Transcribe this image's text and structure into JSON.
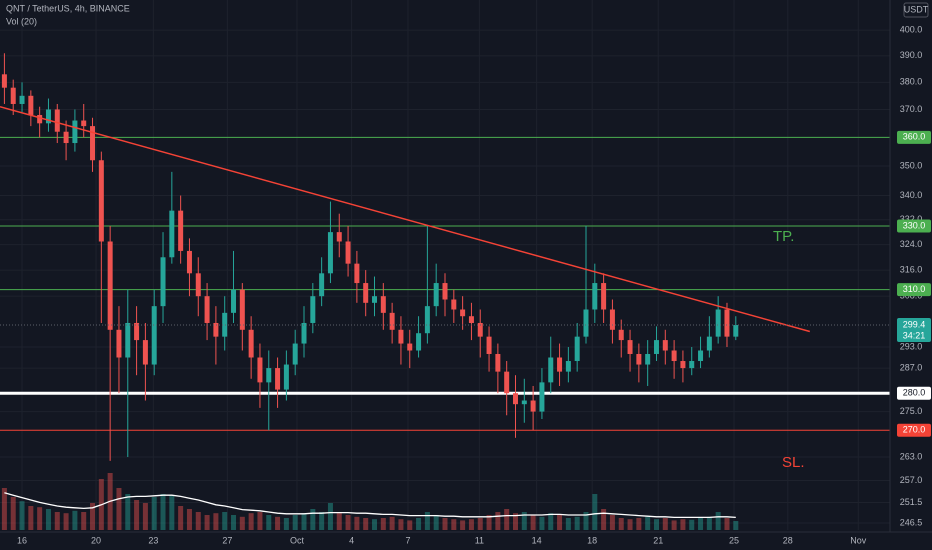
{
  "chart_data": {
    "type": "candlestick",
    "title": "QNT / TetherUS, 4h, BINANCE",
    "volume_label": "Vol (20)",
    "y_unit": "USDT",
    "log_scale": true,
    "grid": true,
    "up_color": "#26a69a",
    "down_color": "#ef5350",
    "ylim": [
      244.8,
      412
    ],
    "xlim": [
      -0.5,
      100.5
    ],
    "yticks": [
      {
        "value": 400,
        "label": "400.0"
      },
      {
        "value": 390,
        "label": "390.0"
      },
      {
        "value": 380,
        "label": "380.0"
      },
      {
        "value": 370,
        "label": "370.0"
      },
      {
        "value": 350,
        "label": "350.0"
      },
      {
        "value": 340,
        "label": "340.0"
      },
      {
        "value": 332,
        "label": "332.0"
      },
      {
        "value": 324,
        "label": "324.0"
      },
      {
        "value": 316,
        "label": "316.0"
      },
      {
        "value": 308,
        "label": "308.0"
      },
      {
        "value": 293,
        "label": "293.0"
      },
      {
        "value": 287,
        "label": "287.0"
      },
      {
        "value": 275,
        "label": "275.0"
      },
      {
        "value": 263,
        "label": "263.0"
      },
      {
        "value": 257,
        "label": "257.0"
      },
      251.5,
      246.5
    ],
    "xticks": [
      {
        "value": 2.0,
        "label": "16"
      },
      {
        "value": 10.4,
        "label": "20"
      },
      {
        "value": 16.9,
        "label": "23"
      },
      {
        "value": 25.3,
        "label": "27"
      },
      {
        "value": 33.2,
        "label": "Oct"
      },
      {
        "value": 39.4,
        "label": "4"
      },
      {
        "value": 45.8,
        "label": "7"
      },
      {
        "value": 53.9,
        "label": "11"
      },
      {
        "value": 60.4,
        "label": "14"
      },
      {
        "value": 66.7,
        "label": "18"
      },
      {
        "value": 74.2,
        "label": "21"
      },
      {
        "value": 82.8,
        "label": "25"
      },
      {
        "value": 88.9,
        "label": "28"
      },
      {
        "value": 96.9,
        "label": "Nov"
      }
    ],
    "open": [
      383,
      378,
      372,
      375,
      368,
      365,
      370,
      362,
      358,
      366,
      364,
      352,
      325,
      298,
      290,
      300,
      295,
      288,
      305,
      320,
      335,
      322,
      315,
      308,
      300,
      296,
      303,
      310,
      298,
      290,
      283,
      287,
      281,
      288,
      294,
      300,
      308,
      315,
      328,
      325,
      318,
      312,
      306,
      308,
      303,
      298,
      294,
      292,
      297,
      305,
      312,
      307,
      304,
      302,
      300,
      296,
      291,
      286,
      280,
      277,
      278,
      275,
      283,
      290,
      286,
      289,
      296,
      304,
      312,
      304,
      298,
      295,
      291,
      288,
      291,
      295,
      292,
      289,
      287,
      289,
      292,
      296,
      304,
      296
    ],
    "high": [
      391,
      381,
      380,
      377,
      371,
      374,
      372,
      366,
      370,
      372,
      367,
      355,
      330,
      305,
      310,
      305,
      300,
      310,
      328,
      348,
      340,
      326,
      320,
      312,
      305,
      308,
      322,
      312,
      302,
      294,
      292,
      290,
      292,
      298,
      305,
      312,
      320,
      338,
      334,
      330,
      322,
      316,
      314,
      312,
      306,
      302,
      298,
      302,
      330,
      318,
      315,
      310,
      308,
      306,
      304,
      299,
      294,
      289,
      285,
      284,
      282,
      287,
      296,
      294,
      293,
      300,
      330,
      318,
      315,
      307,
      301,
      298,
      294,
      295,
      299,
      298,
      295,
      292,
      293,
      296,
      302,
      308,
      306,
      302
    ],
    "low": [
      372,
      368,
      369,
      364,
      360,
      362,
      358,
      352,
      355,
      360,
      348,
      300,
      262,
      280,
      263,
      285,
      278,
      285,
      300,
      318,
      318,
      308,
      302,
      295,
      288,
      292,
      300,
      292,
      284,
      276,
      270,
      276,
      278,
      285,
      290,
      297,
      305,
      312,
      320,
      314,
      306,
      302,
      302,
      298,
      294,
      288,
      287,
      290,
      294,
      302,
      302,
      300,
      298,
      295,
      290,
      286,
      280,
      274,
      268,
      272,
      270,
      273,
      280,
      282,
      283,
      286,
      294,
      300,
      300,
      294,
      290,
      286,
      283,
      282,
      289,
      288,
      284,
      283,
      285,
      287,
      290,
      294,
      293,
      295
    ],
    "close": [
      378,
      372,
      375,
      368,
      365,
      370,
      362,
      358,
      366,
      364,
      352,
      325,
      298,
      290,
      300,
      295,
      288,
      305,
      320,
      335,
      322,
      315,
      308,
      300,
      296,
      303,
      310,
      298,
      290,
      283,
      287,
      281,
      288,
      294,
      300,
      308,
      315,
      328,
      325,
      318,
      312,
      306,
      308,
      303,
      298,
      294,
      292,
      297,
      305,
      312,
      307,
      304,
      302,
      300,
      296,
      291,
      286,
      280,
      277,
      278,
      275,
      283,
      290,
      286,
      289,
      296,
      304,
      312,
      304,
      298,
      295,
      291,
      288,
      291,
      295,
      292,
      289,
      287,
      289,
      292,
      296,
      304,
      296,
      299.4
    ],
    "volume": [
      70,
      55,
      48,
      40,
      38,
      35,
      30,
      28,
      32,
      30,
      45,
      85,
      95,
      70,
      60,
      50,
      45,
      55,
      60,
      58,
      40,
      35,
      30,
      25,
      28,
      30,
      25,
      22,
      28,
      30,
      25,
      22,
      20,
      25,
      28,
      35,
      30,
      45,
      30,
      25,
      22,
      20,
      18,
      20,
      22,
      18,
      16,
      20,
      30,
      25,
      20,
      18,
      16,
      18,
      20,
      25,
      30,
      35,
      28,
      30,
      25,
      22,
      28,
      25,
      20,
      22,
      30,
      60,
      35,
      25,
      20,
      18,
      20,
      22,
      18,
      20,
      16,
      18,
      17,
      20,
      22,
      30,
      20,
      15
    ],
    "volume_ma": [
      62,
      58,
      54,
      50,
      46,
      43,
      40,
      38,
      37,
      36,
      37,
      42,
      48,
      52,
      55,
      56,
      56,
      57,
      58,
      58,
      56,
      53,
      50,
      46,
      42,
      40,
      37,
      34,
      33,
      32,
      30,
      28,
      27,
      27,
      27,
      28,
      28,
      29,
      29,
      29,
      28,
      28,
      27,
      26,
      26,
      25,
      24,
      24,
      24,
      24,
      23,
      23,
      22,
      22,
      22,
      22,
      23,
      24,
      24,
      25,
      25,
      25,
      26,
      26,
      25,
      25,
      25,
      27,
      28,
      27,
      26,
      25,
      24,
      23,
      22,
      22,
      21,
      21,
      21,
      21,
      21,
      22,
      22,
      21
    ],
    "levels": [
      {
        "value": 360,
        "label": "360.0",
        "color": "#4caf50"
      },
      {
        "value": 330,
        "label": "330.0",
        "color": "#4caf50"
      },
      {
        "value": 310,
        "label": "310.0",
        "color": "#4caf50"
      },
      {
        "value": 280,
        "label": "280.0",
        "color": "#ffffff"
      },
      {
        "value": 270,
        "label": "270.0",
        "color": "#f44336"
      }
    ],
    "trendline": {
      "x": [
        -0.5,
        91.4
      ],
      "y": [
        371,
        297.5
      ],
      "color": "#f44336"
    },
    "last_price": 299.4,
    "countdown": "34:21",
    "annotations": [
      {
        "text": "TP.",
        "color": "#4caf50"
      },
      {
        "text": "SL.",
        "color": "#f44336"
      }
    ]
  }
}
